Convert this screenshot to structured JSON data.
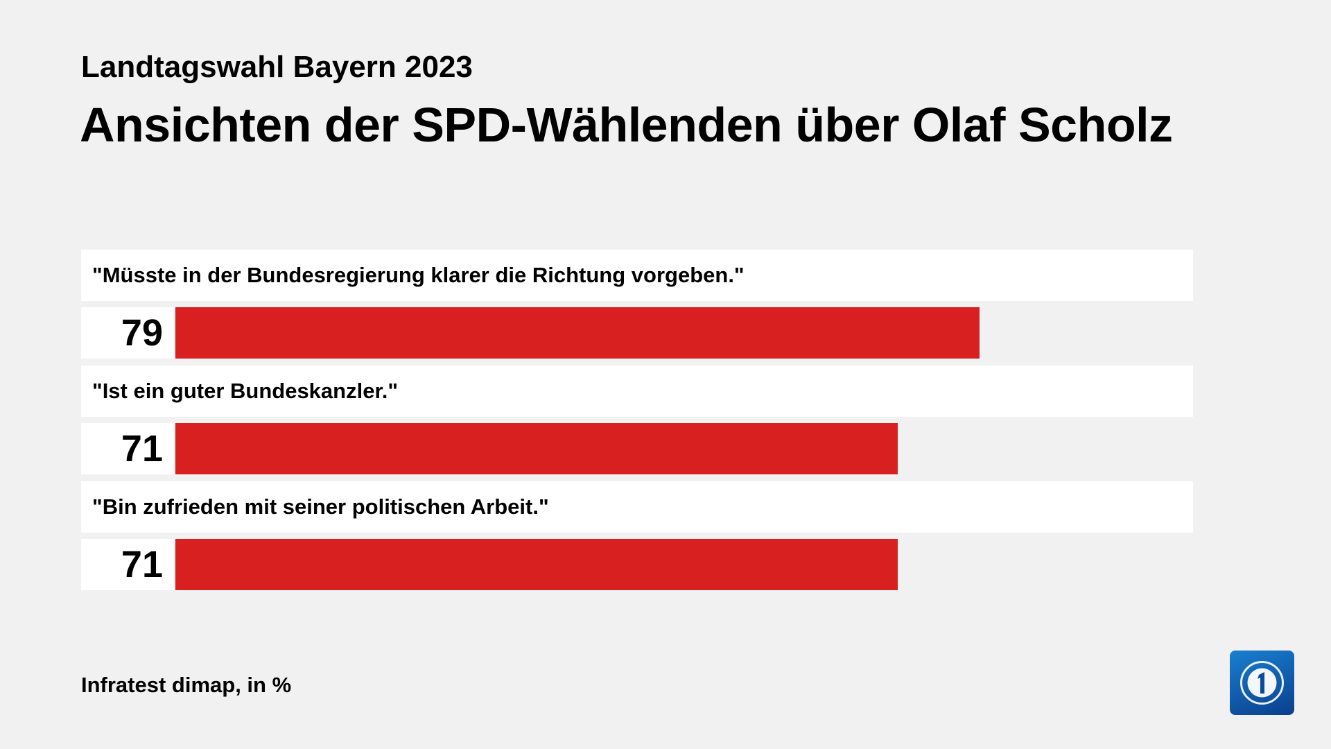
{
  "subtitle": "Landtagswahl Bayern 2023",
  "title": "Ansichten der SPD-Wählenden über Olaf Scholz",
  "footer": "Infratest dimap, in %",
  "logo": "ARD tagesschau 1",
  "chart_data": {
    "type": "bar",
    "orientation": "horizontal",
    "categories": [
      "\"Müsste in der Bundesregierung klarer die Richtung vorgeben.\"",
      "\"Ist ein guter Bundeskanzler.\"",
      "\"Bin zufrieden mit seiner politischen Arbeit.\""
    ],
    "values": [
      79,
      71,
      71
    ],
    "value_labels": [
      "79",
      "71",
      "71"
    ],
    "xlim": [
      0,
      100
    ],
    "bar_color": "#d82020",
    "grid": false
  }
}
